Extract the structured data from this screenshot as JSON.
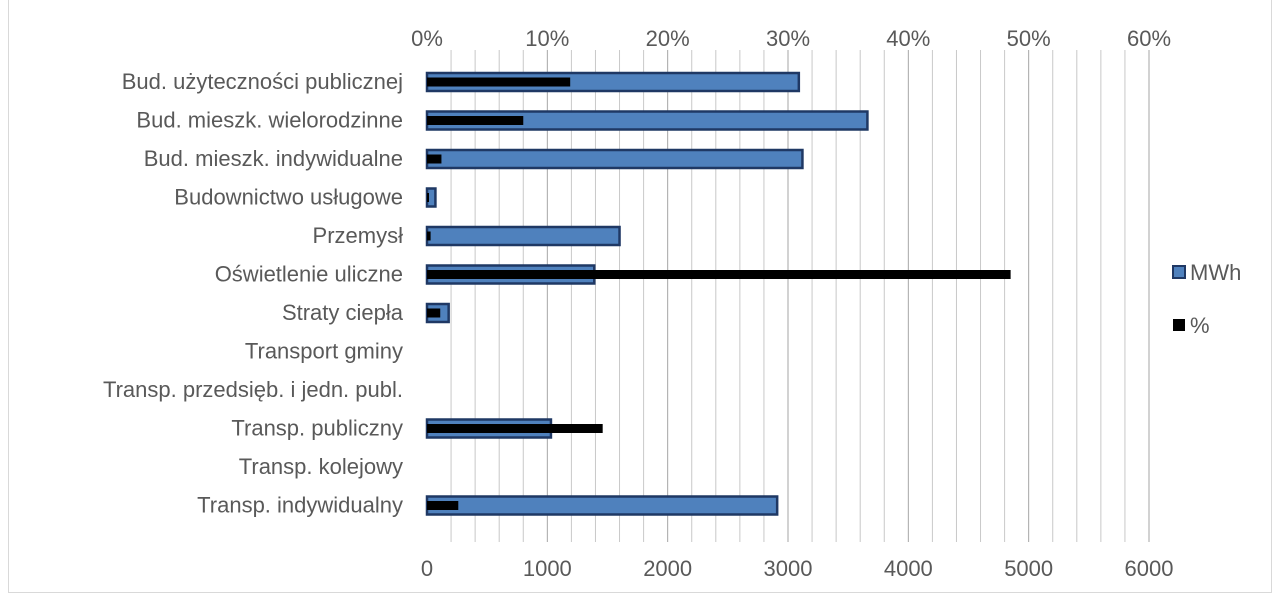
{
  "chart_data": {
    "type": "bar",
    "orientation": "horizontal",
    "title": "",
    "categories": [
      "Bud. użyteczności publicznej",
      "Bud. mieszk. wielorodzinne",
      "Bud. mieszk. indywidualne",
      "Budownictwo usługowe",
      "Przemysł",
      "Oświetlenie uliczne",
      "Straty ciepła",
      "Transport gminy",
      "Transp. przedsięb. i jedn. publ.",
      "Transp. publiczny",
      "Transp. kolejowy",
      "Transp. indywidualny"
    ],
    "series": [
      {
        "name": "MWh",
        "axis": "bottom",
        "color": "#4f81bd",
        "border": "#1f3864",
        "values": [
          3090,
          3660,
          3120,
          70,
          1600,
          1390,
          180,
          0,
          0,
          1030,
          0,
          2910
        ]
      },
      {
        "name": "%",
        "axis": "top",
        "color": "#000000",
        "values": [
          11.9,
          8.0,
          1.2,
          0.1,
          0.3,
          48.5,
          1.1,
          0,
          0,
          14.6,
          0,
          2.6
        ]
      }
    ],
    "x_bottom": {
      "ticks": [
        "0",
        "1000",
        "2000",
        "3000",
        "4000",
        "5000",
        "6000"
      ],
      "lim": [
        0,
        6000
      ]
    },
    "x_top": {
      "ticks": [
        "0%",
        "10%",
        "20%",
        "30%",
        "40%",
        "50%",
        "60%"
      ],
      "lim": [
        0,
        60
      ]
    },
    "grid": true,
    "legend": {
      "position": "right",
      "entries": [
        "MWh",
        "%"
      ]
    }
  }
}
